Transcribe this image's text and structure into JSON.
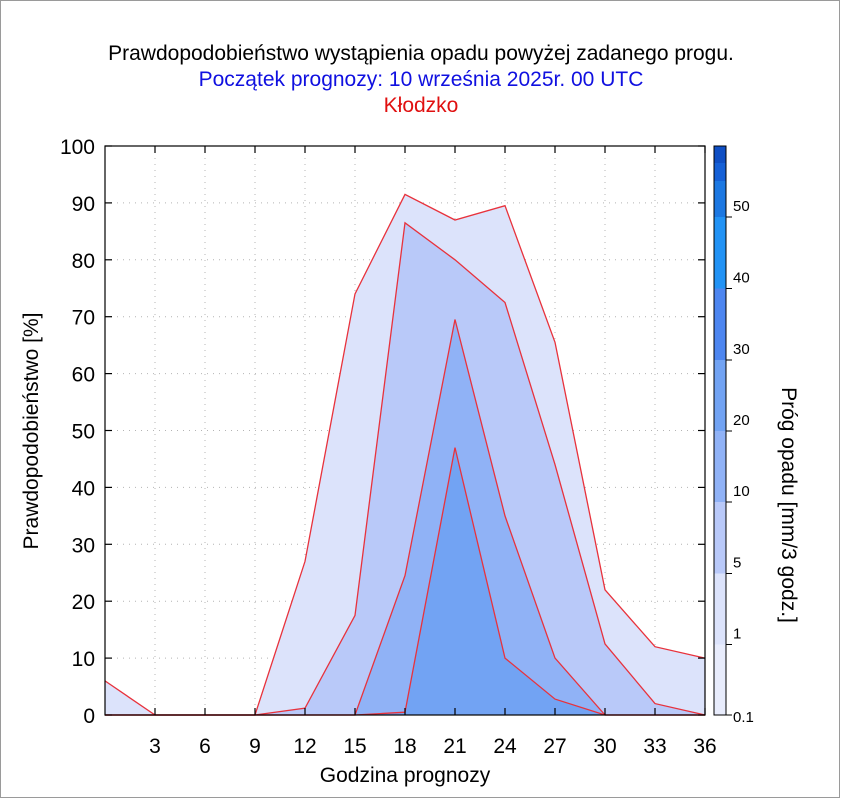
{
  "chart_data": {
    "type": "area",
    "title": "Prawdopodobieństwo wystąpienia opadu powyżej zadanego progu.",
    "subtitle": "Początek prognozy: 10 września 2025r. 00 UTC",
    "location": "Kłodzko",
    "xlabel": "Godzina prognozy",
    "ylabel": "Prawdopodobieństwo [%]",
    "xlim": [
      0,
      36
    ],
    "ylim": [
      0,
      100
    ],
    "x": [
      0,
      3,
      6,
      9,
      12,
      15,
      18,
      21,
      24,
      27,
      30,
      33,
      36
    ],
    "x_ticks": [
      "3",
      "6",
      "9",
      "12",
      "15",
      "18",
      "21",
      "24",
      "27",
      "30",
      "33",
      "36"
    ],
    "y_ticks": [
      "0",
      "10",
      "20",
      "30",
      "40",
      "50",
      "60",
      "70",
      "80",
      "90",
      "100"
    ],
    "grid": true,
    "series": [
      {
        "name": "0.1",
        "color": "#dce3fb",
        "values": [
          6,
          0,
          0,
          0,
          27,
          74,
          91.5,
          87,
          89.5,
          65.5,
          22,
          12,
          10
        ]
      },
      {
        "name": "1",
        "color": "#b9c9f9",
        "values": [
          0,
          0,
          0,
          0,
          1.2,
          17.5,
          86.5,
          80,
          72.5,
          44,
          12.5,
          2,
          0
        ]
      },
      {
        "name": "5",
        "color": "#90b2f6",
        "values": [
          0,
          0,
          0,
          0,
          0,
          0,
          24.5,
          69.5,
          35,
          10,
          0,
          0,
          0
        ]
      },
      {
        "name": "10",
        "color": "#72a3f3",
        "values": [
          0,
          0,
          0,
          0,
          0,
          0,
          0.5,
          47,
          10,
          2.8,
          0,
          0,
          0
        ]
      }
    ],
    "colorbar": {
      "label": "Próg opadu [mm/3 godz.]",
      "tick_labels": [
        "0.1",
        "1",
        "5",
        "10",
        "20",
        "30",
        "40",
        "50"
      ],
      "colors": [
        "#e8ecfc",
        "#dce3fb",
        "#b9c9f9",
        "#90b2f6",
        "#72a3f3",
        "#4d86f0",
        "#2293f5",
        "#1c78e2",
        "#1560d6",
        "#0f4fc4",
        "#0840b0"
      ]
    }
  }
}
